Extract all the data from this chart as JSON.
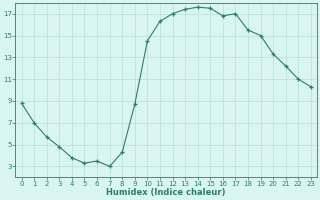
{
  "x": [
    0,
    1,
    2,
    3,
    4,
    5,
    6,
    7,
    8,
    9,
    10,
    11,
    12,
    13,
    14,
    15,
    16,
    17,
    18,
    19,
    20,
    21,
    22,
    23
  ],
  "y": [
    8.8,
    7.0,
    5.7,
    4.8,
    3.8,
    3.3,
    3.5,
    3.0,
    4.3,
    8.7,
    14.5,
    16.3,
    17.0,
    17.4,
    17.6,
    17.5,
    16.8,
    17.0,
    15.5,
    15.0,
    13.3,
    12.2,
    11.0,
    10.3
  ],
  "xlim": [
    -0.5,
    23.5
  ],
  "ylim": [
    2,
    18
  ],
  "yticks": [
    3,
    5,
    7,
    9,
    11,
    13,
    15,
    17
  ],
  "xticks": [
    0,
    1,
    2,
    3,
    4,
    5,
    6,
    7,
    8,
    9,
    10,
    11,
    12,
    13,
    14,
    15,
    16,
    17,
    18,
    19,
    20,
    21,
    22,
    23
  ],
  "xlabel": "Humidex (Indice chaleur)",
  "line_color": "#2d7d6e",
  "marker": "+",
  "bg_color": "#d8f5f0",
  "grid_color": "#b8e0d8",
  "font_color": "#2d7d6e",
  "spine_color": "#2d7d6e"
}
